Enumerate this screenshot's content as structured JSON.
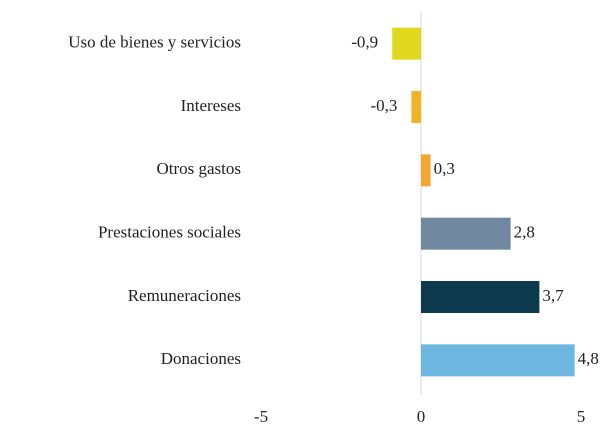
{
  "chart_data": {
    "type": "barh",
    "categories": [
      "Uso de bienes y servicios",
      "Intereses",
      "Otros gastos",
      "Prestaciones sociales",
      "Remuneraciones",
      "Donaciones"
    ],
    "values": [
      -0.9,
      -0.3,
      0.3,
      2.8,
      3.7,
      4.8
    ],
    "value_labels": [
      "-0,9",
      "-0,3",
      "0,3",
      "2,8",
      "3,7",
      "4,8"
    ],
    "colors": [
      "#e0d81c",
      "#f0b323",
      "#f2a830",
      "#7189a0",
      "#0d3a4f",
      "#6cb6e0"
    ],
    "xlim": [
      -5,
      5
    ],
    "xticks": [
      -5,
      0,
      5
    ],
    "grid": false
  }
}
